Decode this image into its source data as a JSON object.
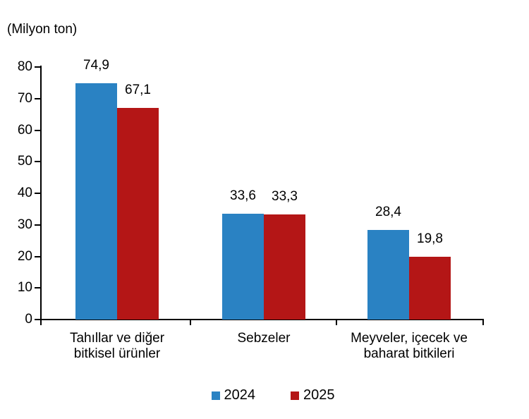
{
  "chart_data": {
    "type": "bar",
    "unit_label": "(Milyon ton)",
    "categories": [
      "Tahıllar ve diğer\nbitkisel ürünler",
      "Sebzeler",
      "Meyveler, içecek ve\nbaharat bitkileri"
    ],
    "series": [
      {
        "name": "2024",
        "color": "#2a82c3",
        "values": [
          74.9,
          33.6,
          28.4
        ],
        "labels": [
          "74,9",
          "33,6",
          "28,4"
        ]
      },
      {
        "name": "2025",
        "color": "#b41616",
        "values": [
          67.1,
          33.3,
          19.8
        ],
        "labels": [
          "67,1",
          "33,3",
          "19,8"
        ]
      }
    ],
    "ylim": [
      0,
      80
    ],
    "yticks": [
      0,
      10,
      20,
      30,
      40,
      50,
      60,
      70,
      80
    ],
    "ytick_labels": [
      "0",
      "10",
      "20",
      "30",
      "40",
      "50",
      "60",
      "70",
      "80"
    ],
    "grid": false,
    "legend_position": "bottom",
    "axis_color": "#000000",
    "text_color": "#000000"
  }
}
